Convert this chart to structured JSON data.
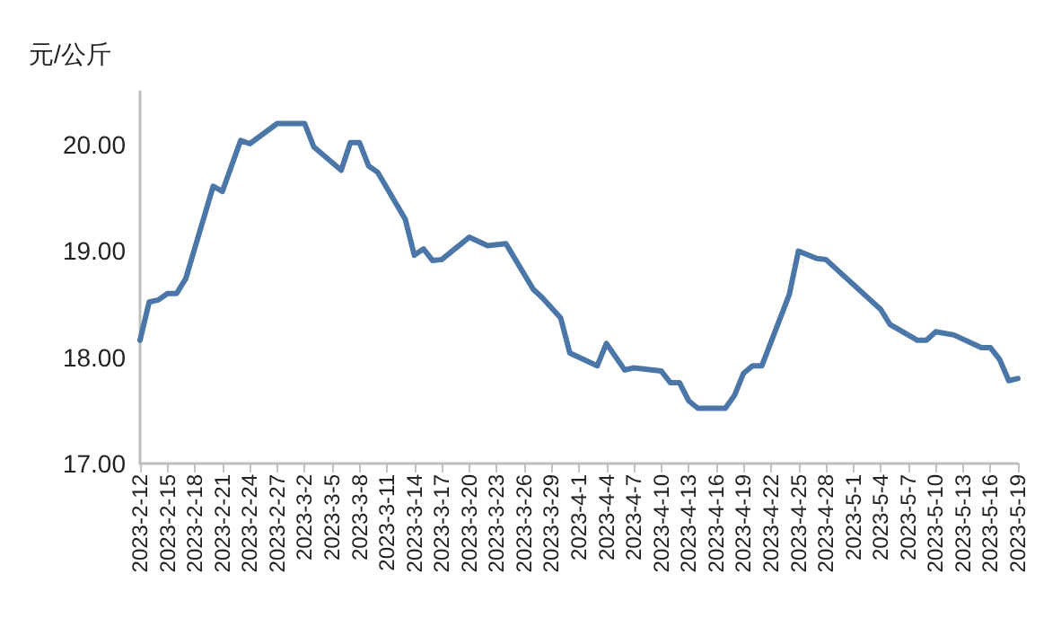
{
  "chart_data": {
    "type": "line",
    "ylabel": "元/公斤",
    "x": [
      "2023-02-12",
      "2023-02-13",
      "2023-02-14",
      "2023-02-15",
      "2023-02-16",
      "2023-02-17",
      "2023-02-20",
      "2023-02-21",
      "2023-02-23",
      "2023-02-24",
      "2023-02-27",
      "2023-03-02",
      "2023-03-03",
      "2023-03-06",
      "2023-03-07",
      "2023-03-08",
      "2023-03-09",
      "2023-03-10",
      "2023-03-13",
      "2023-03-14",
      "2023-03-15",
      "2023-03-16",
      "2023-03-17",
      "2023-03-20",
      "2023-03-22",
      "2023-03-24",
      "2023-03-27",
      "2023-03-28",
      "2023-03-30",
      "2023-03-31",
      "2023-04-03",
      "2023-04-04",
      "2023-04-06",
      "2023-04-07",
      "2023-04-10",
      "2023-04-11",
      "2023-04-12",
      "2023-04-13",
      "2023-04-14",
      "2023-04-17",
      "2023-04-18",
      "2023-04-19",
      "2023-04-20",
      "2023-04-21",
      "2023-04-24",
      "2023-04-25",
      "2023-04-27",
      "2023-04-28",
      "2023-05-04",
      "2023-05-05",
      "2023-05-08",
      "2023-05-09",
      "2023-05-10",
      "2023-05-12",
      "2023-05-15",
      "2023-05-16",
      "2023-05-17",
      "2023-05-18",
      "2023-05-19"
    ],
    "series": [
      {
        "color": "#4a76a8",
        "values": [
          18.16,
          18.52,
          18.54,
          18.6,
          18.6,
          18.74,
          19.61,
          19.56,
          20.04,
          20.01,
          20.2,
          20.2,
          19.98,
          19.76,
          20.02,
          20.02,
          19.8,
          19.74,
          19.3,
          18.96,
          19.02,
          18.91,
          18.92,
          19.13,
          19.05,
          19.07,
          18.64,
          18.56,
          18.37,
          18.04,
          17.92,
          18.13,
          17.88,
          17.9,
          17.87,
          17.76,
          17.76,
          17.59,
          17.52,
          17.52,
          17.64,
          17.85,
          17.92,
          17.92,
          18.59,
          19.0,
          18.93,
          18.92,
          18.45,
          18.31,
          18.16,
          18.16,
          18.24,
          18.21,
          18.09,
          18.09,
          17.98,
          17.78,
          17.8
        ]
      }
    ],
    "xlim": [
      "2023-02-12",
      "2023-05-19"
    ],
    "xticks": [
      {
        "value": "2023-02-12",
        "label": "2023-2-12"
      },
      {
        "value": "2023-02-15",
        "label": "2023-2-15"
      },
      {
        "value": "2023-02-18",
        "label": "2023-2-18"
      },
      {
        "value": "2023-02-21",
        "label": "2023-2-21"
      },
      {
        "value": "2023-02-24",
        "label": "2023-2-24"
      },
      {
        "value": "2023-02-27",
        "label": "2023-2-27"
      },
      {
        "value": "2023-03-02",
        "label": "2023-3-2"
      },
      {
        "value": "2023-03-05",
        "label": "2023-3-5"
      },
      {
        "value": "2023-03-08",
        "label": "2023-3-8"
      },
      {
        "value": "2023-03-11",
        "label": "2023-3-11"
      },
      {
        "value": "2023-03-14",
        "label": "2023-3-14"
      },
      {
        "value": "2023-03-17",
        "label": "2023-3-17"
      },
      {
        "value": "2023-03-20",
        "label": "2023-3-20"
      },
      {
        "value": "2023-03-23",
        "label": "2023-3-23"
      },
      {
        "value": "2023-03-26",
        "label": "2023-3-26"
      },
      {
        "value": "2023-03-29",
        "label": "2023-3-29"
      },
      {
        "value": "2023-04-01",
        "label": "2023-4-1"
      },
      {
        "value": "2023-04-04",
        "label": "2023-4-4"
      },
      {
        "value": "2023-04-07",
        "label": "2023-4-7"
      },
      {
        "value": "2023-04-10",
        "label": "2023-4-10"
      },
      {
        "value": "2023-04-13",
        "label": "2023-4-13"
      },
      {
        "value": "2023-04-16",
        "label": "2023-4-16"
      },
      {
        "value": "2023-04-19",
        "label": "2023-4-19"
      },
      {
        "value": "2023-04-22",
        "label": "2023-4-22"
      },
      {
        "value": "2023-04-25",
        "label": "2023-4-25"
      },
      {
        "value": "2023-04-28",
        "label": "2023-4-28"
      },
      {
        "value": "2023-05-01",
        "label": "2023-5-1"
      },
      {
        "value": "2023-05-04",
        "label": "2023-5-4"
      },
      {
        "value": "2023-05-07",
        "label": "2023-5-7"
      },
      {
        "value": "2023-05-10",
        "label": "2023-5-10"
      },
      {
        "value": "2023-05-13",
        "label": "2023-5-13"
      },
      {
        "value": "2023-05-16",
        "label": "2023-5-16"
      },
      {
        "value": "2023-05-19",
        "label": "2023-5-19"
      }
    ],
    "ylim": [
      17,
      20.5
    ],
    "yticks": [
      {
        "value": 17,
        "label": "17.00"
      },
      {
        "value": 18,
        "label": "18.00"
      },
      {
        "value": 19,
        "label": "19.00"
      },
      {
        "value": 20,
        "label": "20.00"
      }
    ],
    "grid": false,
    "marker": "none",
    "line_style": "solid"
  }
}
